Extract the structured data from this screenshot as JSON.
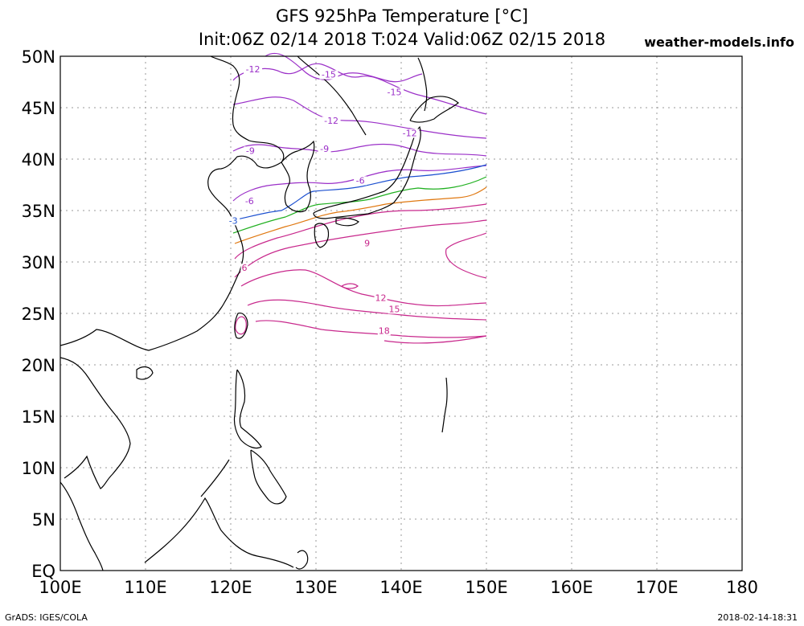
{
  "header": {
    "title": "GFS 925hPa Temperature [°C]",
    "subtitle": "Init:06Z 02/14 2018 T:024 Valid:06Z 02/15 2018",
    "site": "weather-models.info"
  },
  "footer": {
    "left": "GrADS: IGES/COLA",
    "right": "2018-02-14-18:31"
  },
  "axes": {
    "lon_ticks": [
      "100E",
      "110E",
      "120E",
      "130E",
      "140E",
      "150E",
      "160E",
      "170E",
      "180"
    ],
    "lat_ticks": [
      "EQ",
      "5N",
      "10N",
      "15N",
      "20N",
      "25N",
      "30N",
      "35N",
      "40N",
      "45N",
      "50N"
    ],
    "lon_range": [
      100,
      180
    ],
    "lat_range": [
      0,
      50
    ],
    "grid": "dotted"
  },
  "contour_labels": [
    {
      "text": "-12",
      "lon": 122.6,
      "lat": 48.5,
      "color": "#9b30c8"
    },
    {
      "text": "-15",
      "lon": 131.5,
      "lat": 48.0,
      "color": "#9b30c8"
    },
    {
      "text": "-15",
      "lon": 139.2,
      "lat": 46.3,
      "color": "#9b30c8"
    },
    {
      "text": "-12",
      "lon": 131.8,
      "lat": 43.5,
      "color": "#9b30c8"
    },
    {
      "text": "-12",
      "lon": 141.0,
      "lat": 42.3,
      "color": "#9b30c8"
    },
    {
      "text": "-9",
      "lon": 122.3,
      "lat": 40.6,
      "color": "#9b30c8"
    },
    {
      "text": "-9",
      "lon": 131.0,
      "lat": 40.8,
      "color": "#9b30c8"
    },
    {
      "text": "-6",
      "lon": 122.2,
      "lat": 35.7,
      "color": "#9b30c8"
    },
    {
      "text": "-6",
      "lon": 135.2,
      "lat": 37.7,
      "color": "#9b30c8"
    },
    {
      "text": "-3",
      "lon": 120.3,
      "lat": 33.8,
      "color": "#1c50d0"
    },
    {
      "text": "9",
      "lon": 136.0,
      "lat": 31.6,
      "color": "#c8288c"
    },
    {
      "text": "6",
      "lon": 121.6,
      "lat": 29.2,
      "color": "#c8288c"
    },
    {
      "text": "12",
      "lon": 137.6,
      "lat": 26.3,
      "color": "#c8288c"
    },
    {
      "text": "15",
      "lon": 139.2,
      "lat": 25.2,
      "color": "#c8288c"
    },
    {
      "text": "18",
      "lon": 138.0,
      "lat": 23.1,
      "color": "#c8288c"
    }
  ],
  "colors": {
    "coast": "#000000",
    "grid": "#9a9a9a",
    "cold": "#9b30c8",
    "minus3": "#1c50d0",
    "zero": "#20b020",
    "plus3": "#e07810",
    "warm": "#c8288c"
  }
}
